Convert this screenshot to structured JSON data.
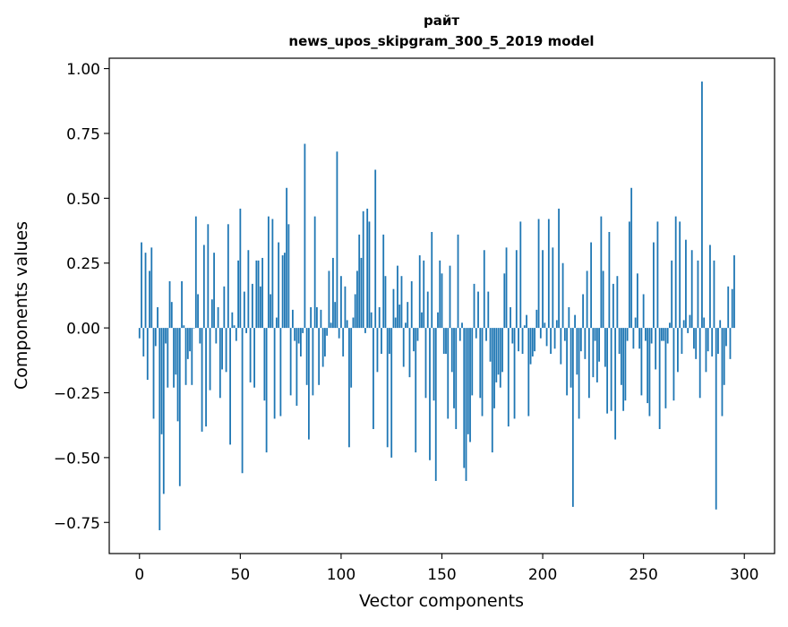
{
  "chart_data": {
    "type": "bar",
    "title_line1": "райт",
    "title_line2": "news_upos_skipgram_300_5_2019 model",
    "xlabel": "Vector components",
    "ylabel": "Components values",
    "xlim": [
      -15,
      315
    ],
    "ylim": [
      -0.87,
      1.04
    ],
    "xticks": [
      0,
      50,
      100,
      150,
      200,
      250,
      300
    ],
    "yticks": [
      -0.75,
      -0.5,
      -0.25,
      0.0,
      0.25,
      0.5,
      0.75,
      1.0
    ],
    "ytick_labels": [
      "−0.75",
      "−0.50",
      "−0.25",
      "0.00",
      "0.25",
      "0.50",
      "0.75",
      "1.00"
    ],
    "bar_color": "#1f77b4",
    "values": [
      -0.04,
      0.33,
      -0.11,
      0.29,
      -0.2,
      0.22,
      0.31,
      -0.35,
      -0.07,
      0.08,
      -0.78,
      -0.41,
      -0.64,
      -0.06,
      -0.23,
      0.18,
      0.1,
      -0.23,
      -0.18,
      -0.36,
      -0.61,
      0.18,
      0.01,
      -0.22,
      -0.12,
      -0.09,
      -0.22,
      0.0,
      0.43,
      0.13,
      -0.06,
      -0.4,
      0.32,
      -0.38,
      0.4,
      -0.24,
      0.11,
      0.29,
      -0.06,
      0.08,
      -0.27,
      -0.16,
      0.16,
      -0.17,
      0.4,
      -0.45,
      0.06,
      0.01,
      -0.05,
      0.26,
      0.46,
      -0.56,
      0.14,
      -0.02,
      0.3,
      -0.21,
      0.17,
      -0.23,
      0.26,
      0.26,
      0.16,
      0.27,
      -0.28,
      -0.48,
      0.43,
      0.13,
      0.42,
      -0.35,
      0.04,
      0.33,
      -0.34,
      0.28,
      0.29,
      0.54,
      0.4,
      -0.26,
      0.07,
      -0.05,
      -0.3,
      -0.06,
      -0.11,
      -0.02,
      0.71,
      -0.22,
      -0.43,
      0.08,
      -0.26,
      0.43,
      0.08,
      -0.22,
      0.07,
      -0.15,
      -0.11,
      -0.03,
      0.22,
      0.02,
      0.27,
      0.1,
      0.68,
      -0.04,
      0.2,
      -0.11,
      0.16,
      0.03,
      -0.46,
      -0.23,
      0.04,
      0.13,
      0.22,
      0.36,
      0.27,
      0.45,
      -0.02,
      0.46,
      0.41,
      0.06,
      -0.39,
      0.61,
      -0.17,
      0.08,
      -0.1,
      0.36,
      0.2,
      -0.46,
      -0.1,
      -0.5,
      0.15,
      0.04,
      0.24,
      0.09,
      0.2,
      -0.15,
      0.02,
      0.1,
      -0.19,
      0.18,
      -0.09,
      -0.48,
      -0.05,
      0.28,
      0.06,
      0.26,
      -0.27,
      0.14,
      -0.51,
      0.37,
      -0.28,
      -0.59,
      0.06,
      0.26,
      0.21,
      -0.1,
      -0.1,
      -0.35,
      0.24,
      -0.17,
      -0.31,
      -0.39,
      0.36,
      -0.05,
      0.02,
      -0.54,
      -0.59,
      -0.41,
      -0.44,
      -0.26,
      0.17,
      -0.04,
      0.14,
      -0.27,
      -0.34,
      0.3,
      -0.05,
      0.14,
      -0.13,
      -0.48,
      -0.31,
      -0.21,
      -0.18,
      -0.23,
      -0.17,
      0.21,
      0.31,
      -0.38,
      0.08,
      -0.06,
      -0.35,
      0.3,
      -0.09,
      0.41,
      -0.1,
      0.01,
      0.05,
      -0.34,
      -0.14,
      -0.11,
      -0.09,
      0.07,
      0.42,
      -0.04,
      0.3,
      0.02,
      -0.07,
      0.42,
      -0.1,
      0.31,
      -0.08,
      0.03,
      0.46,
      -0.14,
      0.25,
      -0.05,
      -0.26,
      0.08,
      -0.23,
      -0.69,
      0.05,
      -0.18,
      -0.35,
      -0.09,
      0.13,
      -0.12,
      0.22,
      -0.27,
      0.33,
      -0.19,
      -0.05,
      -0.21,
      -0.13,
      0.43,
      0.22,
      -0.15,
      -0.33,
      0.37,
      -0.32,
      0.17,
      -0.43,
      0.2,
      -0.1,
      -0.22,
      -0.32,
      -0.28,
      -0.05,
      0.41,
      0.54,
      -0.08,
      0.04,
      0.21,
      -0.08,
      -0.26,
      0.13,
      -0.05,
      -0.29,
      -0.34,
      -0.06,
      0.33,
      -0.16,
      0.41,
      -0.39,
      -0.05,
      -0.05,
      -0.31,
      -0.06,
      0.02,
      0.26,
      -0.28,
      0.43,
      -0.17,
      0.41,
      -0.1,
      0.03,
      0.34,
      -0.02,
      0.05,
      0.3,
      -0.08,
      -0.12,
      0.26,
      -0.27,
      0.95,
      0.04,
      -0.17,
      -0.09,
      0.32,
      -0.11,
      0.26,
      -0.7,
      -0.1,
      0.03,
      -0.34,
      -0.22,
      -0.07,
      0.16,
      -0.12,
      0.15,
      0.28
    ]
  }
}
